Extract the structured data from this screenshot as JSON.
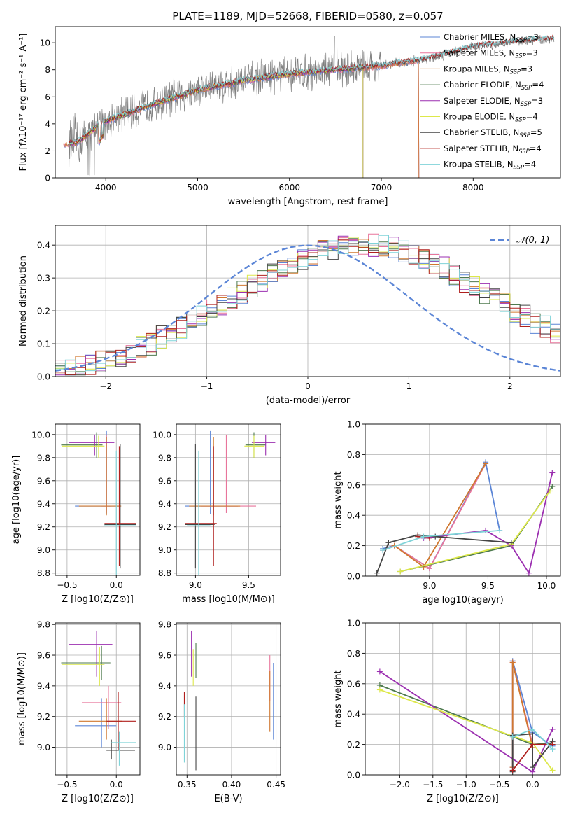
{
  "title": "PLATE=1189, MJD=52668, FIBERID=0580, z=0.057",
  "colors": {
    "Chabrier MILES": "#5b85d6",
    "Salpeter MILES": "#e8759b",
    "Kroupa MILES": "#d0782f",
    "Chabrier ELODIE": "#4e7a4e",
    "Salpeter ELODIE": "#9b2fb0",
    "Kroupa ELODIE": "#dde84a",
    "Chabrier STELIB": "#444444",
    "Salpeter STELIB": "#b0201e",
    "Kroupa STELIB": "#7fd3d8",
    "data": "#808080",
    "normal": "#5b85d6",
    "green_light": "#a8e060"
  },
  "chart_data": [
    {
      "id": "spectrum",
      "type": "line",
      "title": "PLATE=1189, MJD=52668, FIBERID=0580, z=0.057",
      "xlabel": "wavelength [Angstrom, rest frame]",
      "ylabel": "Flux [fλ10⁻¹⁷ erg cm⁻² s⁻¹ A⁻¹]",
      "xlim": [
        3450,
        8950
      ],
      "ylim": [
        0,
        11.2
      ],
      "xticks": [
        4000,
        5000,
        6000,
        7000,
        8000
      ],
      "yticks": [
        0,
        2,
        4,
        6,
        8,
        10
      ],
      "legend_position": "upper right",
      "legend": [
        {
          "label": "Chabrier MILES, N",
          "sub": "SSP",
          "suffix": "=3"
        },
        {
          "label": "Salpeter MILES, N",
          "sub": "SSP",
          "suffix": "=3"
        },
        {
          "label": "Kroupa MILES, N",
          "sub": "SSP",
          "suffix": "=3"
        },
        {
          "label": "Chabrier ELODIE, N",
          "sub": "SSP",
          "suffix": "=4"
        },
        {
          "label": "Salpeter ELODIE, N",
          "sub": "SSP",
          "suffix": "=3"
        },
        {
          "label": "Kroupa ELODIE, N",
          "sub": "SSP",
          "suffix": "=4"
        },
        {
          "label": "Chabrier STELIB, N",
          "sub": "SSP",
          "suffix": "=5"
        },
        {
          "label": "Salpeter STELIB, N",
          "sub": "SSP",
          "suffix": "=4"
        },
        {
          "label": "Kroupa STELIB, N",
          "sub": "SSP",
          "suffix": "=4"
        }
      ],
      "continuum": {
        "x": [
          3600,
          3700,
          3800,
          3900,
          4000,
          4200,
          4500,
          5000,
          5500,
          6000,
          6500,
          7000,
          7500,
          8000,
          8500,
          8900
        ],
        "y": [
          2.5,
          2.7,
          3.2,
          3.8,
          4.2,
          4.7,
          5.4,
          6.5,
          7.2,
          7.7,
          8.0,
          8.3,
          8.8,
          9.7,
          10.1,
          10.3
        ]
      },
      "model_ranges": {
        "MILES": [
          3540,
          7410
        ],
        "ELODIE": [
          3600,
          6800
        ],
        "STELIB": [
          3600,
          8880
        ]
      }
    },
    {
      "id": "residuals",
      "type": "bar",
      "xlabel": "(data-model)/error",
      "ylabel": "Normed distribution",
      "xlim": [
        -2.5,
        2.5
      ],
      "ylim": [
        0,
        0.46
      ],
      "xticks": [
        -2,
        -1,
        0,
        1,
        2
      ],
      "yticks": [
        0.0,
        0.1,
        0.2,
        0.3,
        0.4
      ],
      "legend_label": "𝒩(0, 1)",
      "bin_width": 0.1,
      "bin_start": -2.5,
      "envelope": [
        0.02,
        0.025,
        0.03,
        0.035,
        0.045,
        0.055,
        0.065,
        0.075,
        0.09,
        0.1,
        0.12,
        0.135,
        0.15,
        0.165,
        0.185,
        0.2,
        0.22,
        0.24,
        0.255,
        0.275,
        0.29,
        0.31,
        0.33,
        0.345,
        0.36,
        0.37,
        0.38,
        0.39,
        0.395,
        0.4,
        0.4,
        0.4,
        0.395,
        0.39,
        0.38,
        0.37,
        0.36,
        0.345,
        0.33,
        0.31,
        0.29,
        0.275,
        0.255,
        0.24,
        0.22,
        0.2,
        0.185,
        0.165,
        0.15,
        0.135
      ]
    },
    {
      "id": "z-age",
      "type": "scatter",
      "xlabel": "Z [log10(Z/Z⊙)]",
      "ylabel": "age [log10(age/yr)]",
      "xlim": [
        -0.62,
        0.24
      ],
      "ylim": [
        8.78,
        10.09
      ],
      "xticks": [
        -0.5,
        0.0
      ],
      "yticks": [
        8.8,
        9.0,
        9.2,
        9.4,
        9.6,
        9.8,
        10.0
      ],
      "crosses": [
        {
          "m": "Chabrier MILES",
          "x": -0.1,
          "xl": -0.42,
          "xh": 0.03,
          "y": 9.38,
          "yl": 9.31,
          "yh": 10.03
        },
        {
          "m": "Salpeter MILES",
          "x": -0.1,
          "xl": -0.15,
          "xh": -0.05,
          "y": 9.38,
          "yl": 9.32,
          "yh": 10.0
        },
        {
          "m": "Kroupa MILES",
          "x": -0.1,
          "xl": -0.38,
          "xh": 0.05,
          "y": 9.38,
          "yl": 9.3,
          "yh": 9.98
        },
        {
          "m": "Chabrier ELODIE",
          "x": -0.2,
          "xl": -0.56,
          "xh": -0.14,
          "y": 9.91,
          "yl": 9.8,
          "yh": 10.02
        },
        {
          "m": "Salpeter ELODIE",
          "x": -0.22,
          "xl": -0.48,
          "xh": -0.02,
          "y": 9.93,
          "yl": 9.82,
          "yh": 10.0
        },
        {
          "m": "Kroupa ELODIE",
          "x": -0.18,
          "xl": -0.55,
          "xh": -0.12,
          "y": 9.9,
          "yl": 9.8,
          "yh": 9.99
        },
        {
          "m": "Chabrier STELIB",
          "x": 0.04,
          "xl": -0.12,
          "xh": 0.2,
          "y": 9.22,
          "yl": 8.84,
          "yh": 9.92
        },
        {
          "m": "Salpeter STELIB",
          "x": 0.03,
          "xl": -0.12,
          "xh": 0.2,
          "y": 9.23,
          "yl": 8.86,
          "yh": 9.9
        },
        {
          "m": "Kroupa STELIB",
          "x": 0.0,
          "xl": -0.13,
          "xh": 0.2,
          "y": 9.21,
          "yl": 8.78,
          "yh": 9.86
        }
      ]
    },
    {
      "id": "mass-age",
      "type": "scatter",
      "xlabel": "mass [log10(M/M⊙)]",
      "ylabel": "",
      "xlim": [
        8.82,
        9.8
      ],
      "ylim": [
        8.78,
        10.09
      ],
      "xticks": [
        9.0,
        9.5
      ],
      "yticks": [
        8.8,
        9.0,
        9.2,
        9.4,
        9.6,
        9.8,
        10.0
      ],
      "crosses": [
        {
          "m": "Chabrier MILES",
          "x": 9.14,
          "xl": 8.9,
          "xh": 9.4,
          "y": 9.38,
          "yl": 9.31,
          "yh": 10.03
        },
        {
          "m": "Salpeter MILES",
          "x": 9.29,
          "xl": 9.05,
          "xh": 9.57,
          "y": 9.38,
          "yl": 9.32,
          "yh": 10.0
        },
        {
          "m": "Kroupa MILES",
          "x": 9.17,
          "xl": 8.94,
          "xh": 9.42,
          "y": 9.38,
          "yl": 9.3,
          "yh": 9.98
        },
        {
          "m": "Chabrier ELODIE",
          "x": 9.55,
          "xl": 9.47,
          "xh": 9.66,
          "y": 9.91,
          "yl": 9.8,
          "yh": 10.02
        },
        {
          "m": "Salpeter ELODIE",
          "x": 9.66,
          "xl": 9.53,
          "xh": 9.75,
          "y": 9.93,
          "yl": 9.82,
          "yh": 10.0
        },
        {
          "m": "Kroupa ELODIE",
          "x": 9.55,
          "xl": 9.46,
          "xh": 9.65,
          "y": 9.9,
          "yl": 9.8,
          "yh": 9.99
        },
        {
          "m": "Chabrier STELIB",
          "x": 9.0,
          "xl": 8.9,
          "xh": 9.18,
          "y": 9.22,
          "yl": 8.84,
          "yh": 9.92
        },
        {
          "m": "Salpeter STELIB",
          "x": 9.17,
          "xl": 8.9,
          "xh": 9.2,
          "y": 9.23,
          "yl": 8.86,
          "yh": 9.9
        },
        {
          "m": "Kroupa STELIB",
          "x": 9.03,
          "xl": 8.92,
          "xh": 9.14,
          "y": 9.21,
          "yl": 8.78,
          "yh": 9.86
        }
      ]
    },
    {
      "id": "age-weight",
      "type": "line",
      "xlabel": "age log10(age/yr)",
      "ylabel": "mass weight",
      "xlim": [
        8.45,
        10.12
      ],
      "ylim": [
        0,
        1.0
      ],
      "xticks": [
        9.0,
        9.5,
        10.0
      ],
      "yticks": [
        0.0,
        0.2,
        0.4,
        0.6,
        0.8,
        1.0
      ],
      "series": [
        {
          "m": "Chabrier MILES",
          "x": [
            8.6,
            8.7,
            9.0,
            9.48,
            9.6
          ],
          "y": [
            0.18,
            0.2,
            0.05,
            0.75,
            0.3
          ]
        },
        {
          "m": "Salpeter MILES",
          "x": [
            8.6,
            8.7,
            9.0,
            9.48
          ],
          "y": [
            0.17,
            0.2,
            0.05,
            0.74
          ]
        },
        {
          "m": "Kroupa MILES",
          "x": [
            8.7,
            8.95,
            9.48
          ],
          "y": [
            0.2,
            0.06,
            0.74
          ]
        },
        {
          "m": "Chabrier ELODIE",
          "x": [
            8.75,
            9.7,
            10.05
          ],
          "y": [
            0.03,
            0.2,
            0.59
          ]
        },
        {
          "m": "Salpeter ELODIE",
          "x": [
            8.95,
            9.48,
            9.7,
            9.85,
            10.05
          ],
          "y": [
            0.25,
            0.3,
            0.2,
            0.02,
            0.68
          ]
        },
        {
          "m": "Kroupa ELODIE",
          "x": [
            8.75,
            9.7,
            10.03
          ],
          "y": [
            0.03,
            0.21,
            0.56
          ]
        },
        {
          "m": "Chabrier STELIB",
          "x": [
            8.55,
            8.65,
            8.9,
            9.05,
            9.7
          ],
          "y": [
            0.02,
            0.22,
            0.27,
            0.26,
            0.22
          ]
        },
        {
          "m": "Salpeter STELIB",
          "x": [
            8.9,
            9.0
          ],
          "y": [
            0.26,
            0.25
          ]
        },
        {
          "m": "Kroupa STELIB",
          "x": [
            8.6,
            8.95,
            9.6
          ],
          "y": [
            0.17,
            0.26,
            0.3
          ]
        }
      ]
    },
    {
      "id": "z-mass",
      "type": "scatter",
      "xlabel": "Z [log10(Z/Z⊙)]",
      "ylabel": "mass [log10(M/M⊙)]",
      "xlim": [
        -0.62,
        0.24
      ],
      "ylim": [
        8.82,
        9.81
      ],
      "xticks": [
        -0.5,
        0.0
      ],
      "yticks": [
        9.0,
        9.2,
        9.4,
        9.6,
        9.8
      ],
      "crosses": [
        {
          "m": "Chabrier MILES",
          "x": -0.15,
          "xl": -0.42,
          "xh": 0.0,
          "y": 9.14,
          "yl": 9.0,
          "yh": 9.32
        },
        {
          "m": "Salpeter MILES",
          "x": -0.08,
          "xl": -0.35,
          "xh": 0.05,
          "y": 9.29,
          "yl": 9.12,
          "yh": 9.4
        },
        {
          "m": "Kroupa MILES",
          "x": -0.1,
          "xl": -0.38,
          "xh": 0.06,
          "y": 9.17,
          "yl": 9.05,
          "yh": 9.32
        },
        {
          "m": "Chabrier ELODIE",
          "x": -0.15,
          "xl": -0.56,
          "xh": -0.06,
          "y": 9.55,
          "yl": 9.44,
          "yh": 9.66
        },
        {
          "m": "Salpeter ELODIE",
          "x": -0.2,
          "xl": -0.48,
          "xh": -0.04,
          "y": 9.67,
          "yl": 9.46,
          "yh": 9.76
        },
        {
          "m": "Kroupa ELODIE",
          "x": -0.17,
          "xl": -0.55,
          "xh": -0.12,
          "y": 9.54,
          "yl": 9.4,
          "yh": 9.65
        },
        {
          "m": "Chabrier STELIB",
          "x": -0.05,
          "xl": -0.1,
          "xh": 0.19,
          "y": 8.98,
          "yl": 8.92,
          "yh": 9.05
        },
        {
          "m": "Salpeter STELIB",
          "x": 0.02,
          "xl": -0.1,
          "xh": 0.2,
          "y": 9.17,
          "yl": 8.98,
          "yh": 9.36
        },
        {
          "m": "Kroupa STELIB",
          "x": 0.03,
          "xl": -0.05,
          "xh": 0.2,
          "y": 9.03,
          "yl": 8.88,
          "yh": 9.1
        }
      ]
    },
    {
      "id": "ebv-mass",
      "type": "scatter",
      "xlabel": "E(B-V)",
      "ylabel": "",
      "xlim": [
        0.338,
        0.455
      ],
      "ylim": [
        8.82,
        9.81
      ],
      "xticks": [
        0.35,
        0.4,
        0.45
      ],
      "yticks": [
        9.0,
        9.2,
        9.4,
        9.6,
        9.8
      ],
      "crosses": [
        {
          "m": "Chabrier MILES",
          "x": 0.447,
          "yl": 9.05,
          "yh": 9.55
        },
        {
          "m": "Salpeter MILES",
          "x": 0.443,
          "yl": 9.3,
          "yh": 9.6
        },
        {
          "m": "Kroupa MILES",
          "x": 0.443,
          "yl": 9.1,
          "yh": 9.5
        },
        {
          "m": "Chabrier ELODIE",
          "x": 0.36,
          "yl": 9.45,
          "yh": 9.68
        },
        {
          "m": "Salpeter ELODIE",
          "x": 0.355,
          "yl": 9.46,
          "yh": 9.76
        },
        {
          "m": "Kroupa ELODIE",
          "x": 0.357,
          "yl": 9.4,
          "yh": 9.64
        },
        {
          "m": "Chabrier STELIB",
          "x": 0.36,
          "yl": 8.85,
          "yh": 9.33
        },
        {
          "m": "Salpeter STELIB",
          "x": 0.347,
          "yl": 9.2,
          "yh": 9.36
        },
        {
          "m": "Kroupa STELIB",
          "x": 0.347,
          "yl": 8.9,
          "yh": 9.28
        }
      ]
    },
    {
      "id": "z-weight",
      "type": "line",
      "xlabel": "Z [log10(Z/Z⊙)]",
      "ylabel": "mass weight",
      "xlim": [
        -2.52,
        0.42
      ],
      "ylim": [
        0,
        1.0
      ],
      "xticks": [
        -2.0,
        -1.5,
        -1.0,
        -0.5,
        0.0
      ],
      "yticks": [
        0.0,
        0.2,
        0.4,
        0.6,
        0.8,
        1.0
      ],
      "series": [
        {
          "m": "Chabrier MILES",
          "x": [
            -0.3,
            -0.3,
            0.0,
            0.3
          ],
          "y": [
            0.05,
            0.75,
            0.28,
            0.19
          ]
        },
        {
          "m": "Salpeter MILES",
          "x": [
            -0.3,
            -0.3,
            0.0
          ],
          "y": [
            0.05,
            0.74,
            0.2
          ]
        },
        {
          "m": "Kroupa MILES",
          "x": [
            -0.3,
            -0.3,
            0.0
          ],
          "y": [
            0.05,
            0.74,
            0.18
          ]
        },
        {
          "m": "Chabrier ELODIE",
          "x": [
            -2.3,
            0.0,
            0.3
          ],
          "y": [
            0.59,
            0.2,
            0.21
          ]
        },
        {
          "m": "Salpeter ELODIE",
          "x": [
            -2.3,
            0.0,
            0.3
          ],
          "y": [
            0.68,
            0.02,
            0.3
          ]
        },
        {
          "m": "Kroupa ELODIE",
          "x": [
            -2.3,
            0.0,
            0.3
          ],
          "y": [
            0.56,
            0.21,
            0.03
          ]
        },
        {
          "m": "Chabrier STELIB",
          "x": [
            -0.3,
            -0.3,
            0.0,
            0.0,
            0.3
          ],
          "y": [
            0.02,
            0.26,
            0.27,
            0.05,
            0.22
          ]
        },
        {
          "m": "Salpeter STELIB",
          "x": [
            -0.3,
            0.0,
            0.3
          ],
          "y": [
            0.03,
            0.2,
            0.2
          ]
        },
        {
          "m": "Kroupa STELIB",
          "x": [
            -0.3,
            0.0,
            0.3
          ],
          "y": [
            0.25,
            0.3,
            0.17
          ]
        }
      ]
    }
  ]
}
